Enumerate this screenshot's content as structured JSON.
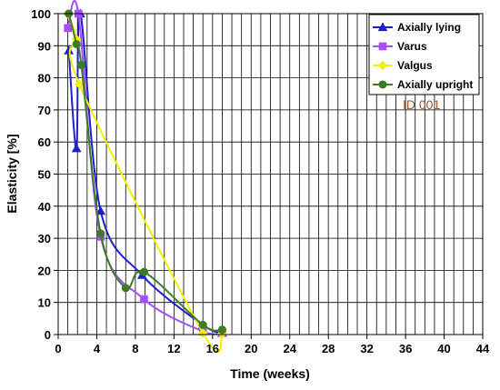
{
  "chart_data": {
    "type": "line",
    "title": "",
    "xlabel": "Time (weeks)",
    "ylabel": "Elasticity [%]",
    "xlim": [
      0,
      44
    ],
    "ylim": [
      0,
      100
    ],
    "x_ticks": [
      0,
      4,
      8,
      12,
      16,
      20,
      24,
      28,
      32,
      36,
      40,
      44
    ],
    "y_ticks": [
      0,
      10,
      20,
      30,
      40,
      50,
      60,
      70,
      80,
      90,
      100
    ],
    "x_minor_step": 1,
    "grid": true,
    "legend_position": "top-right",
    "annotation": "ID 001",
    "series": [
      {
        "name": "Axially lying",
        "color": "#1f1fcc",
        "marker": "triangle",
        "x": [
          1.1,
          1.9,
          2.3,
          4.4,
          8.7,
          15.0,
          17.0
        ],
        "y": [
          88.5,
          58,
          100,
          38.5,
          18.5,
          3,
          0.5
        ]
      },
      {
        "name": "Varus",
        "color": "#a64dff",
        "marker": "square",
        "x": [
          1.0,
          2.1,
          4.4,
          8.9,
          15.0,
          17.0
        ],
        "y": [
          95.5,
          100,
          30.5,
          11,
          1,
          0.5
        ]
      },
      {
        "name": "Valgus",
        "color": "#f0f000",
        "marker": "diamond",
        "x": [
          1.0,
          1.9,
          2.2,
          15.0,
          17.0
        ],
        "y": [
          100,
          92,
          78,
          0.5,
          0.3
        ]
      },
      {
        "name": "Axially upright",
        "color": "#3a7d22",
        "marker": "circle",
        "x": [
          1.1,
          1.9,
          2.4,
          4.4,
          7.0,
          8.9,
          15.0,
          17.0
        ],
        "y": [
          100,
          90.5,
          84,
          31.5,
          14.5,
          19.5,
          3,
          1.5
        ]
      }
    ]
  }
}
